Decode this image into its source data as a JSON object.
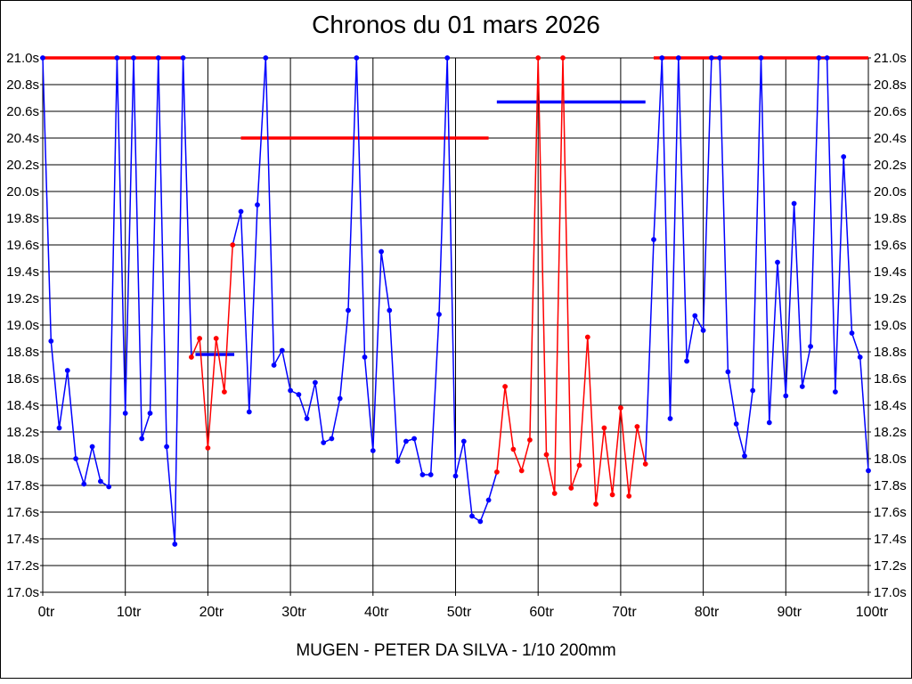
{
  "chart_data": {
    "type": "line",
    "title": "Chronos du 01 mars 2026",
    "caption": "MUGEN - PETER DA SILVA - 1/10 200mm",
    "x_unit": "tr",
    "y_unit": "s",
    "xlim": [
      0,
      100
    ],
    "ylim": [
      17.0,
      21.0
    ],
    "x_start": 0,
    "x_step": 1,
    "grid": true,
    "clip_value": 21.0,
    "x_tick_labels": [
      "0tr",
      "10tr",
      "20tr",
      "30tr",
      "40tr",
      "50tr",
      "60tr",
      "70tr",
      "80tr",
      "90tr",
      "100tr"
    ],
    "y_tick_labels": [
      "21.0s",
      "20.8s",
      "20.6s",
      "20.4s",
      "20.2s",
      "20.0s",
      "19.8s",
      "19.6s",
      "19.4s",
      "19.2s",
      "19.0s",
      "18.8s",
      "18.6s",
      "18.4s",
      "18.2s",
      "18.0s",
      "17.8s",
      "17.6s",
      "17.4s",
      "17.2s",
      "17.0s"
    ],
    "y_tick_values": [
      21.0,
      20.8,
      20.6,
      20.4,
      20.2,
      20.0,
      19.8,
      19.6,
      19.4,
      19.2,
      19.0,
      18.8,
      18.6,
      18.4,
      18.2,
      18.0,
      17.8,
      17.6,
      17.4,
      17.2,
      17.0
    ],
    "x_tick_values": [
      0,
      10,
      20,
      30,
      40,
      50,
      60,
      70,
      80,
      90,
      100
    ],
    "palette": {
      "blue": "#0000FF",
      "red": "#FF0000"
    },
    "series_name": "lap_times_seconds",
    "lap_times": [
      21.0,
      18.88,
      18.23,
      18.66,
      18.0,
      17.81,
      18.09,
      17.83,
      17.79,
      21.0,
      18.34,
      21.0,
      18.15,
      18.34,
      21.0,
      18.09,
      17.36,
      21.0,
      18.76,
      18.9,
      18.08,
      18.9,
      18.5,
      19.6,
      19.85,
      18.35,
      19.9,
      21.0,
      18.7,
      18.81,
      18.51,
      18.48,
      18.3,
      18.57,
      18.12,
      18.15,
      18.45,
      19.11,
      21.0,
      18.76,
      18.06,
      19.55,
      19.11,
      17.98,
      18.13,
      18.15,
      17.88,
      17.88,
      19.08,
      21.0,
      17.87,
      18.13,
      17.57,
      17.53,
      17.69,
      17.9,
      18.54,
      18.07,
      17.91,
      18.14,
      21.0,
      18.03,
      17.74,
      21.0,
      17.78,
      17.95,
      18.91,
      17.66,
      18.23,
      17.73,
      18.38,
      17.72,
      18.24,
      17.96,
      19.64,
      21.0,
      18.3,
      21.0,
      18.73,
      19.07,
      18.96,
      21.0,
      21.0,
      18.65,
      18.26,
      18.02,
      18.51,
      21.0,
      18.27,
      19.47,
      18.47,
      19.91,
      18.54,
      18.84,
      21.0,
      21.0,
      18.5,
      20.26,
      18.94,
      18.76,
      17.91
    ],
    "segments": [
      {
        "start": 0,
        "end": 17,
        "color": "blue"
      },
      {
        "start": 18,
        "end": 23,
        "color": "red"
      },
      {
        "start": 24,
        "end": 54,
        "color": "blue"
      },
      {
        "start": 55,
        "end": 73,
        "color": "red"
      },
      {
        "start": 74,
        "end": 100,
        "color": "blue"
      }
    ],
    "reference_lines": [
      {
        "start": 0,
        "end": 17,
        "value": 21.0,
        "color": "red"
      },
      {
        "start": 18.5,
        "end": 23.2,
        "value": 18.78,
        "color": "blue"
      },
      {
        "start": 24,
        "end": 54,
        "value": 20.4,
        "color": "red"
      },
      {
        "start": 55,
        "end": 73,
        "value": 20.67,
        "color": "blue"
      },
      {
        "start": 74,
        "end": 100,
        "value": 21.0,
        "color": "red"
      }
    ]
  }
}
